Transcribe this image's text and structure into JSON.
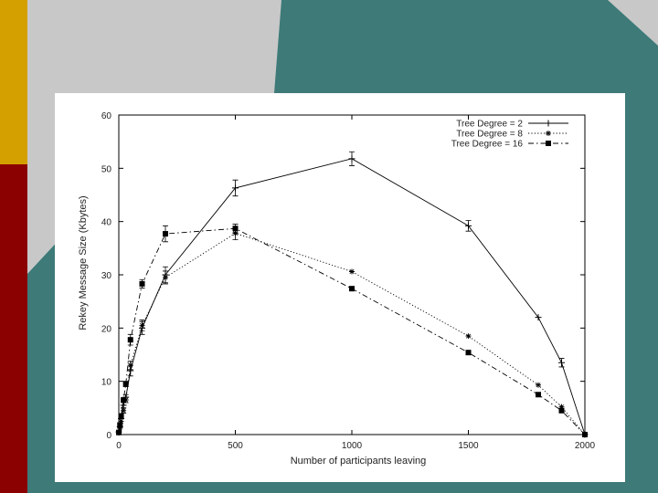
{
  "slide": {
    "colors": {
      "teal": "#3d7a78",
      "gray": "#c8c8c8",
      "gold": "#d4a000",
      "maroon": "#8b0000"
    }
  },
  "chart_data": {
    "type": "line",
    "title": "",
    "xlabel": "Number of participants leaving",
    "ylabel": "Rekey Message Size (Kbytes)",
    "xlim": [
      0,
      2000
    ],
    "ylim": [
      0,
      60
    ],
    "xticks": [
      0,
      500,
      1000,
      1500,
      2000
    ],
    "yticks": [
      0,
      10,
      20,
      30,
      40,
      50,
      60
    ],
    "grid": false,
    "legend_position": "top-right",
    "series": [
      {
        "name": "Tree Degree = 2",
        "marker": "plus",
        "line": "solid",
        "x": [
          0,
          5,
          10,
          20,
          30,
          50,
          100,
          200,
          500,
          1000,
          1500,
          1800,
          1900,
          2000
        ],
        "y": [
          0.5,
          1.5,
          3,
          5.5,
          7,
          12,
          20,
          30,
          46.3,
          51.8,
          39.2,
          22,
          13.5,
          0
        ],
        "err": [
          0,
          0,
          0,
          0.5,
          0.5,
          1,
          1.2,
          1.5,
          1.5,
          1.3,
          1,
          0,
          0.8,
          0
        ]
      },
      {
        "name": "Tree Degree = 8",
        "marker": "star",
        "line": "dotted",
        "x": [
          0,
          5,
          10,
          20,
          30,
          50,
          100,
          200,
          500,
          1000,
          1500,
          1800,
          1900,
          2000
        ],
        "y": [
          0.3,
          1.2,
          2.5,
          4.5,
          6.5,
          13,
          20.5,
          29.5,
          37.8,
          30.6,
          18.5,
          9.3,
          5.2,
          0
        ],
        "err": [
          0,
          0,
          0,
          0.5,
          0.5,
          0.8,
          1,
          1.2,
          1.2,
          0,
          0,
          0,
          0,
          0
        ]
      },
      {
        "name": "Tree Degree = 16",
        "marker": "square",
        "line": "dashdot",
        "x": [
          0,
          5,
          10,
          20,
          30,
          50,
          100,
          200,
          500,
          1000,
          1500,
          1800,
          1900,
          2000
        ],
        "y": [
          0.4,
          1.8,
          3.5,
          6.5,
          9.5,
          17.8,
          28.3,
          37.7,
          38.7,
          27.4,
          15.4,
          7.5,
          4.5,
          0
        ],
        "err": [
          0,
          0,
          0,
          0,
          0.5,
          1,
          0.8,
          1.5,
          0.8,
          0,
          0,
          0,
          0,
          0
        ]
      }
    ]
  }
}
